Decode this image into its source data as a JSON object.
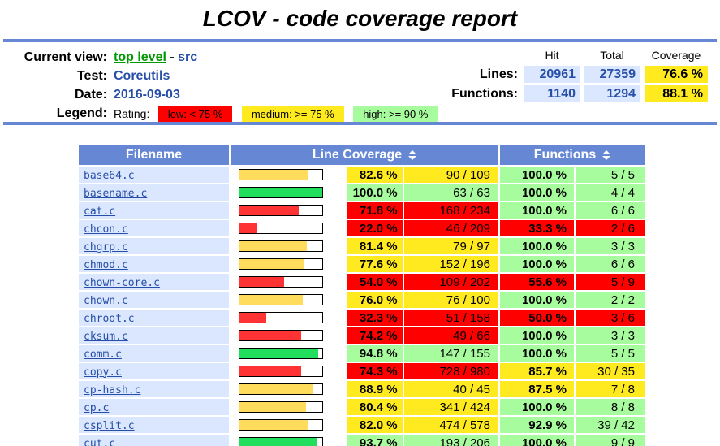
{
  "page_title": "LCOV - code coverage report",
  "colors": {
    "header_blue": "#6688D4",
    "cell_light_blue": "#DAE7FE",
    "value_blue": "#284FA8",
    "link_green": "#009900",
    "rating_low_bg": "#FF0000",
    "rating_medium_bg": "#FFEA20",
    "rating_high_bg": "#A7FC9D",
    "bar_low": "#FF3333",
    "bar_medium": "#FFDC5C",
    "bar_high": "#21DF5C"
  },
  "header": {
    "current_view": {
      "label": "Current view:",
      "link_text": "top level",
      "separator": "-",
      "current": "src"
    },
    "test": {
      "label": "Test:",
      "value": "Coreutils"
    },
    "date": {
      "label": "Date:",
      "value": "2016-09-03"
    },
    "legend": {
      "label": "Legend:",
      "rating_label": "Rating:",
      "items": [
        {
          "name": "low",
          "label": "low: < 75 %",
          "rating": "low"
        },
        {
          "name": "medium",
          "label": "medium: >= 75 %",
          "rating": "medium"
        },
        {
          "name": "high",
          "label": "high: >= 90 %",
          "rating": "high"
        }
      ]
    },
    "stats": {
      "col_headers": [
        "Hit",
        "Total",
        "Coverage"
      ],
      "rows": [
        {
          "label": "Lines:",
          "hit": "20961",
          "total": "27359",
          "coverage": "76.6 %"
        },
        {
          "label": "Functions:",
          "hit": "1140",
          "total": "1294",
          "coverage": "88.1 %"
        }
      ]
    }
  },
  "table": {
    "headers": {
      "filename": "Filename",
      "line_coverage": "Line Coverage",
      "functions": "Functions"
    },
    "rating_thresholds": {
      "high_min": 90,
      "medium_min": 75
    },
    "rows": [
      {
        "file": "base64.c",
        "line_pct": "82.6 %",
        "line_ratio": "90 / 109",
        "func_pct": "100.0 %",
        "func_ratio": "5 / 5"
      },
      {
        "file": "basename.c",
        "line_pct": "100.0 %",
        "line_ratio": "63 / 63",
        "func_pct": "100.0 %",
        "func_ratio": "4 / 4"
      },
      {
        "file": "cat.c",
        "line_pct": "71.8 %",
        "line_ratio": "168 / 234",
        "func_pct": "100.0 %",
        "func_ratio": "6 / 6"
      },
      {
        "file": "chcon.c",
        "line_pct": "22.0 %",
        "line_ratio": "46 / 209",
        "func_pct": "33.3 %",
        "func_ratio": "2 / 6"
      },
      {
        "file": "chgrp.c",
        "line_pct": "81.4 %",
        "line_ratio": "79 / 97",
        "func_pct": "100.0 %",
        "func_ratio": "3 / 3"
      },
      {
        "file": "chmod.c",
        "line_pct": "77.6 %",
        "line_ratio": "152 / 196",
        "func_pct": "100.0 %",
        "func_ratio": "6 / 6"
      },
      {
        "file": "chown-core.c",
        "line_pct": "54.0 %",
        "line_ratio": "109 / 202",
        "func_pct": "55.6 %",
        "func_ratio": "5 / 9"
      },
      {
        "file": "chown.c",
        "line_pct": "76.0 %",
        "line_ratio": "76 / 100",
        "func_pct": "100.0 %",
        "func_ratio": "2 / 2"
      },
      {
        "file": "chroot.c",
        "line_pct": "32.3 %",
        "line_ratio": "51 / 158",
        "func_pct": "50.0 %",
        "func_ratio": "3 / 6"
      },
      {
        "file": "cksum.c",
        "line_pct": "74.2 %",
        "line_ratio": "49 / 66",
        "func_pct": "100.0 %",
        "func_ratio": "3 / 3"
      },
      {
        "file": "comm.c",
        "line_pct": "94.8 %",
        "line_ratio": "147 / 155",
        "func_pct": "100.0 %",
        "func_ratio": "5 / 5"
      },
      {
        "file": "copy.c",
        "line_pct": "74.3 %",
        "line_ratio": "728 / 980",
        "func_pct": "85.7 %",
        "func_ratio": "30 / 35"
      },
      {
        "file": "cp-hash.c",
        "line_pct": "88.9 %",
        "line_ratio": "40 / 45",
        "func_pct": "87.5 %",
        "func_ratio": "7 / 8"
      },
      {
        "file": "cp.c",
        "line_pct": "80.4 %",
        "line_ratio": "341 / 424",
        "func_pct": "100.0 %",
        "func_ratio": "8 / 8"
      },
      {
        "file": "csplit.c",
        "line_pct": "82.0 %",
        "line_ratio": "474 / 578",
        "func_pct": "92.9 %",
        "func_ratio": "39 / 42"
      },
      {
        "file": "cut.c",
        "line_pct": "93.7 %",
        "line_ratio": "193 / 206",
        "func_pct": "100.0 %",
        "func_ratio": "9 / 9"
      }
    ]
  }
}
